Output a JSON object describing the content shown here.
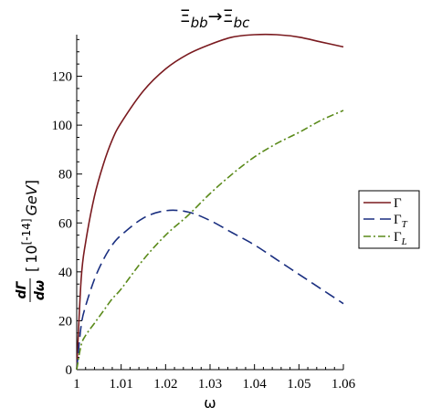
{
  "chart_data": {
    "type": "line",
    "title": {
      "main": "Ξ",
      "sub1": "bb",
      "arrow": "→",
      "main2": "Ξ",
      "sub2": "bc"
    },
    "xlabel": "ω",
    "ylabel": {
      "numerator": "dΓ",
      "denominator": "dω",
      "bracket_left": "[",
      "unit_base": "10",
      "exp_left": "[",
      "exp": "-14",
      "exp_right": "]",
      "unit": "GeV",
      "bracket_right": "]"
    },
    "xlim": [
      1,
      1.06
    ],
    "ylim": [
      0,
      137
    ],
    "xticks": [
      1,
      1.01,
      1.02,
      1.03,
      1.04,
      1.05,
      1.06
    ],
    "xtick_labels": [
      "1",
      "1.01",
      "1.02",
      "1.03",
      "1.04",
      "1.05",
      "1.06"
    ],
    "yticks": [
      0,
      20,
      40,
      60,
      80,
      100,
      120
    ],
    "ytick_labels": [
      "0",
      "20",
      "40",
      "60",
      "80",
      "100",
      "120"
    ],
    "legend_position": "right",
    "x": [
      1.0,
      1.001,
      1.002,
      1.004,
      1.006,
      1.008,
      1.01,
      1.015,
      1.02,
      1.025,
      1.03,
      1.035,
      1.04,
      1.045,
      1.05,
      1.055,
      1.06
    ],
    "series": [
      {
        "name": "Γ",
        "sub": "",
        "color": "#7a1a1f",
        "dash": "solid",
        "values": [
          0,
          37,
          52,
          71,
          84,
          94,
          101,
          114,
          123,
          129,
          133,
          136,
          137,
          137,
          136,
          134,
          132
        ]
      },
      {
        "name": "Γ",
        "sub": "T",
        "color": "#1a2f80",
        "dash": "long-dash",
        "values": [
          0,
          18,
          26,
          37,
          45,
          51,
          55,
          62,
          65,
          64.5,
          61,
          56,
          51,
          45,
          39,
          33,
          27
        ]
      },
      {
        "name": "Γ",
        "sub": "L",
        "color": "#5a8a1a",
        "dash": "dash-dot",
        "values": [
          0,
          10,
          14,
          19,
          24,
          29,
          33,
          45,
          55,
          63,
          72,
          80,
          87,
          92.5,
          97,
          102,
          106
        ]
      }
    ]
  }
}
